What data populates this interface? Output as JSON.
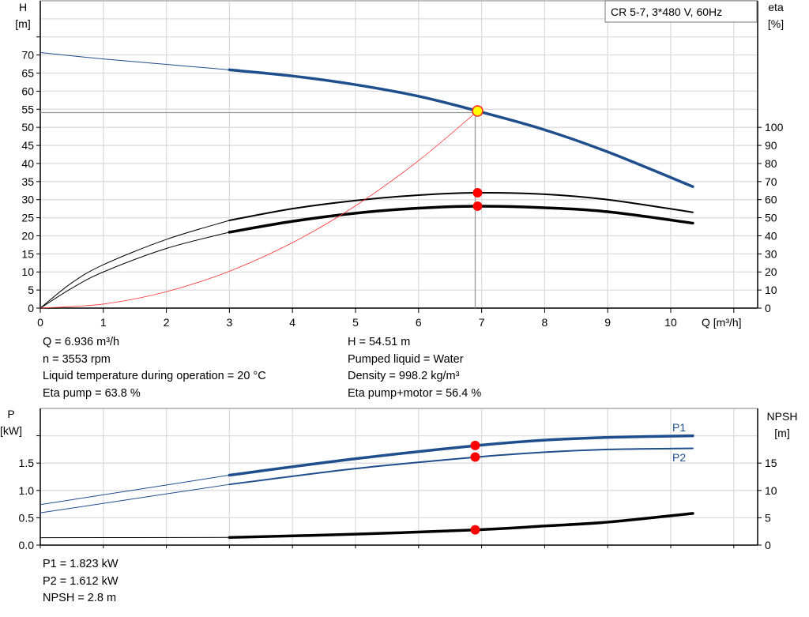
{
  "chart_data": [
    {
      "type": "line",
      "legend_box": "CR 5-7, 3*480 V, 60Hz",
      "xlabel": "Q [m³/h]",
      "ylabel_left": [
        "H",
        "[m]"
      ],
      "ylabel_right": [
        "eta",
        "[%]"
      ],
      "xlim": [
        0,
        11.4
      ],
      "ylim_left": [
        0,
        85
      ],
      "ylim_right": [
        0,
        170
      ],
      "x_ticks": [
        "0",
        "1",
        "2",
        "3",
        "4",
        "5",
        "6",
        "7",
        "8",
        "9",
        "10"
      ],
      "y_ticks_left": [
        "0",
        "5",
        "10",
        "15",
        "20",
        "25",
        "30",
        "35",
        "40",
        "45",
        "50",
        "55",
        "60",
        "65",
        "70"
      ],
      "y_ticks_right": [
        "0",
        "10",
        "20",
        "30",
        "40",
        "50",
        "60",
        "70",
        "80",
        "90",
        "100"
      ],
      "grid": true,
      "series": [
        {
          "key": "H",
          "axis": "left",
          "color": "#1f4e8c",
          "x": [
            0,
            1,
            2,
            3,
            4,
            5,
            6,
            6.936,
            8,
            9,
            10.35
          ],
          "y": [
            70.7,
            68.9,
            67.4,
            65.9,
            64.2,
            61.8,
            58.6,
            54.51,
            49.3,
            43.2,
            33.6
          ]
        },
        {
          "key": "eta_pump",
          "axis": "right",
          "color": "#000000",
          "x": [
            0,
            0.5,
            1,
            2,
            3,
            4,
            5,
            6,
            6.936,
            8,
            9,
            10.35
          ],
          "y": [
            0,
            14,
            24,
            38,
            48.5,
            55,
            59.5,
            62.5,
            63.8,
            63,
            60,
            53
          ]
        },
        {
          "key": "eta_pump_motor",
          "axis": "right",
          "color": "#000000",
          "x": [
            0,
            0.5,
            1,
            2,
            3,
            4,
            5,
            6,
            6.936,
            8,
            9,
            10.35
          ],
          "y": [
            0,
            11,
            20,
            33,
            42,
            48,
            52.5,
            55.3,
            56.4,
            55.5,
            53.3,
            47
          ]
        },
        {
          "key": "system_curve",
          "axis": "left",
          "color": "#ff3030",
          "x": [
            0,
            1,
            2,
            3,
            4,
            5,
            6,
            6.936
          ],
          "y": [
            0,
            1.13,
            4.53,
            10.2,
            18.1,
            28.3,
            40.8,
            54.51
          ]
        }
      ],
      "operating_point": {
        "Q": 6.936,
        "H": 54.51,
        "eta_pump": 63.8,
        "eta_pump_motor": 56.4
      },
      "thin_until_x": 3
    },
    {
      "type": "line",
      "ylabel_left": [
        "P",
        "[kW]"
      ],
      "ylabel_right": [
        "NPSH",
        "[m]"
      ],
      "xlim": [
        0,
        11.4
      ],
      "ylim_left": [
        0,
        2.5
      ],
      "ylim_right": [
        0,
        25
      ],
      "y_ticks_left": [
        "0.0",
        "0.5",
        "1.0",
        "1.5"
      ],
      "y_ticks_right": [
        "0",
        "5",
        "10",
        "15"
      ],
      "grid": true,
      "series": [
        {
          "key": "P1",
          "name": "P1",
          "axis": "left",
          "color": "#1f4e8c",
          "x": [
            0,
            3,
            5,
            6.936,
            8,
            9,
            10.35
          ],
          "y": [
            0.74,
            1.28,
            1.58,
            1.823,
            1.92,
            1.97,
            2.0
          ]
        },
        {
          "key": "P2",
          "name": "P2",
          "axis": "left",
          "color": "#1f4e8c",
          "x": [
            0,
            3,
            5,
            6.936,
            8,
            9,
            10.35
          ],
          "y": [
            0.59,
            1.11,
            1.4,
            1.612,
            1.7,
            1.75,
            1.77
          ]
        },
        {
          "key": "NPSH",
          "axis": "right",
          "color": "#000000",
          "x": [
            0,
            3,
            5,
            6.936,
            8,
            9,
            10.35
          ],
          "y": [
            1.35,
            1.4,
            2.0,
            2.8,
            3.5,
            4.2,
            5.8
          ]
        }
      ],
      "operating_point": {
        "Q": 6.936,
        "P1": 1.823,
        "P2": 1.612,
        "NPSH": 2.8
      },
      "thin_until_x": 3
    }
  ],
  "info_top_left": [
    "Q = 6.936 m³/h",
    "n = 3553 rpm",
    "Liquid temperature during operation = 20 °C",
    "Eta pump = 63.8 %"
  ],
  "info_top_right": [
    "H = 54.51 m",
    "Pumped liquid = Water",
    "Density = 998.2 kg/m³",
    "Eta pump+motor = 56.4 %"
  ],
  "info_bottom": [
    "P1 = 1.823 kW",
    "P2 = 1.612 kW",
    "NPSH = 2.8 m"
  ],
  "colors": {
    "head": "#1f4e8c",
    "power": "#1f4e8c",
    "efficiency": "#000000",
    "system": "#ff3030",
    "marker": "#ff0000",
    "duty_point": "#ffff00",
    "grid": "#dcdcdc"
  }
}
